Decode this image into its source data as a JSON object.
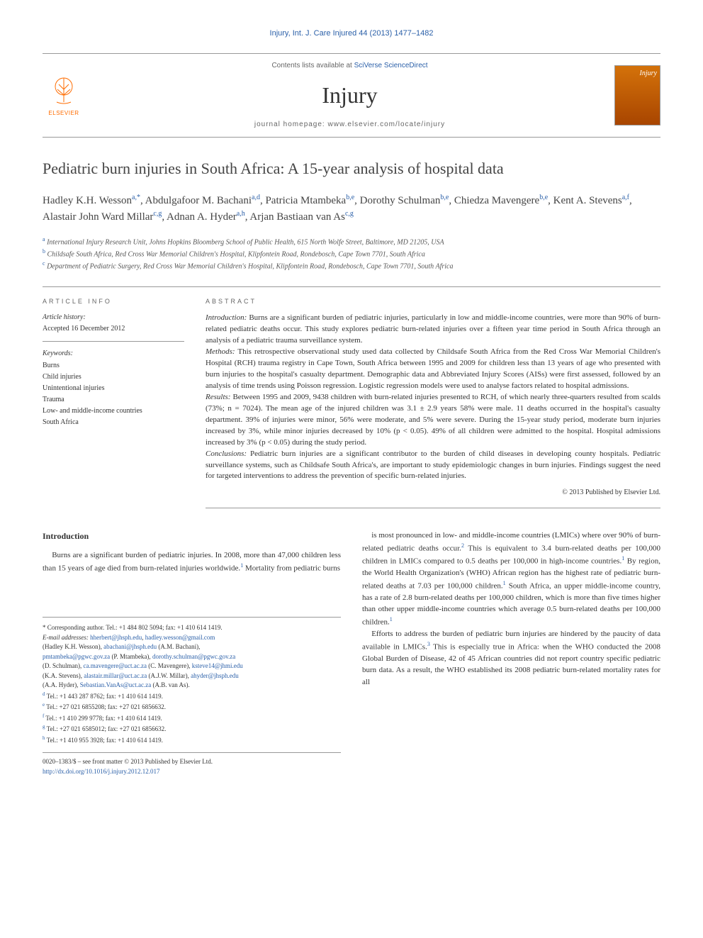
{
  "running_head": "Injury, Int. J. Care Injured 44 (2013) 1477–1482",
  "masthead": {
    "contents_prefix": "Contents lists available at ",
    "contents_link": "SciVerse ScienceDirect",
    "journal": "Injury",
    "homepage_prefix": "journal homepage: ",
    "homepage_url": "www.elsevier.com/locate/injury",
    "elsevier": "ELSEVIER",
    "cover_label": "Injury"
  },
  "title": "Pediatric burn injuries in South Africa: A 15-year analysis of hospital data",
  "authors_html": "Hadley K.H. Wesson|a,*|, Abdulgafoor M. Bachani|a,d|, Patricia Mtambeka|b,e|, Dorothy Schulman|b,e|, Chiedza Mavengere|b,e|, Kent A. Stevens|a,f|, Alastair John Ward Millar|c,g|, Adnan A. Hyder|a,h|, Arjan Bastiaan van As|c,g|",
  "affiliations": [
    {
      "key": "a",
      "text": "International Injury Research Unit, Johns Hopkins Bloomberg School of Public Health, 615 North Wolfe Street, Baltimore, MD 21205, USA"
    },
    {
      "key": "b",
      "text": "Childsafe South Africa, Red Cross War Memorial Children's Hospital, Klipfontein Road, Rondebosch, Cape Town 7701, South Africa"
    },
    {
      "key": "c",
      "text": "Department of Pediatric Surgery, Red Cross War Memorial Children's Hospital, Klipfontein Road, Rondebosch, Cape Town 7701, South Africa"
    }
  ],
  "article_info": {
    "label": "ARTICLE INFO",
    "history_heading": "Article history:",
    "history_text": "Accepted 16 December 2012",
    "keywords_heading": "Keywords:",
    "keywords": [
      "Burns",
      "Child injuries",
      "Unintentional injuries",
      "Trauma",
      "Low- and middle-income countries",
      "South Africa"
    ]
  },
  "abstract": {
    "label": "ABSTRACT",
    "sections": [
      {
        "heading": "Introduction:",
        "text": " Burns are a significant burden of pediatric injuries, particularly in low and middle-income countries, were more than 90% of burn-related pediatric deaths occur. This study explores pediatric burn-related injuries over a fifteen year time period in South Africa through an analysis of a pediatric trauma surveillance system."
      },
      {
        "heading": "Methods:",
        "text": " This retrospective observational study used data collected by Childsafe South Africa from the Red Cross War Memorial Children's Hospital (RCH) trauma registry in Cape Town, South Africa between 1995 and 2009 for children less than 13 years of age who presented with burn injuries to the hospital's casualty department. Demographic data and Abbreviated Injury Scores (AISs) were first assessed, followed by an analysis of time trends using Poisson regression. Logistic regression models were used to analyse factors related to hospital admissions."
      },
      {
        "heading": "Results:",
        "text": " Between 1995 and 2009, 9438 children with burn-related injuries presented to RCH, of which nearly three-quarters resulted from scalds (73%; n = 7024). The mean age of the injured children was 3.1 ± 2.9 years 58% were male. 11 deaths occurred in the hospital's casualty department. 39% of injuries were minor, 56% were moderate, and 5% were severe. During the 15-year study period, moderate burn injuries increased by 3%, while minor injuries decreased by 10% (p < 0.05). 49% of all children were admitted to the hospital. Hospital admissions increased by 3% (p < 0.05) during the study period."
      },
      {
        "heading": "Conclusions:",
        "text": " Pediatric burn injuries are a significant contributor to the burden of child diseases in developing county hospitals. Pediatric surveillance systems, such as Childsafe South Africa's, are important to study epidemiologic changes in burn injuries. Findings suggest the need for targeted interventions to address the prevention of specific burn-related injuries."
      }
    ],
    "copyright": "© 2013 Published by Elsevier Ltd."
  },
  "body": {
    "intro_heading": "Introduction",
    "col1_p1": "Burns are a significant burden of pediatric injuries. In 2008, more than 47,000 children less than 15 years of age died from burn-related injuries worldwide.|1| Mortality from pediatric burns",
    "col2_p1": "is most pronounced in low- and middle-income countries (LMICs) where over 90% of burn-related pediatric deaths occur.|2| This is equivalent to 3.4 burn-related deaths per 100,000 children in LMICs compared to 0.5 deaths per 100,000 in high-income countries.|1| By region, the World Health Organization's (WHO) African region has the highest rate of pediatric burn-related deaths at 7.03 per 100,000 children.|1| South Africa, an upper middle-income country, has a rate of 2.8 burn-related deaths per 100,000 children, which is more than five times higher than other upper middle-income countries which average 0.5 burn-related deaths per 100,000 children.|1|",
    "col2_p2": "Efforts to address the burden of pediatric burn injuries are hindered by the paucity of data available in LMICs.|3| This is especially true in Africa: when the WHO conducted the 2008 Global Burden of Disease, 42 of 45 African countries did not report country specific pediatric burn data. As a result, the WHO established its 2008 pediatric burn-related mortality rates for all"
  },
  "footnotes": {
    "corresponding": "* Corresponding author. Tel.: +1 484 802 5094; fax: +1 410 614 1419.",
    "emails_label": "E-mail addresses: ",
    "emails": [
      {
        "addr": "hherbert@jhsph.edu",
        "sep": ", "
      },
      {
        "addr": "hadley.wesson@gmail.com",
        "sep": ""
      }
    ],
    "email_people": [
      "(Hadley K.H. Wesson), |abachani@jhsph.edu| (A.M. Bachani),",
      "|pmtambeka@pgwc.gov.za| (P. Mtambeka), |dorothy.schulman@pgwc.gov.za|",
      "(D. Schulman), |ca.mavengere@uct.ac.za| (C. Mavengere), |ksteve14@jhmi.edu|",
      "(K.A. Stevens), |alastair.millar@uct.ac.za| (A.J.W. Millar), |ahyder@jhsph.edu|",
      "(A.A. Hyder), |Sebastian.VanAs@uct.ac.za| (A.B. van As)."
    ],
    "tels": [
      {
        "key": "d",
        "text": "Tel.: +1 443 287 8762; fax: +1 410 614 1419."
      },
      {
        "key": "e",
        "text": "Tel.: +27 021 6855208; fax: +27 021 6856632."
      },
      {
        "key": "f",
        "text": "Tel.: +1 410 299 9778; fax: +1 410 614 1419."
      },
      {
        "key": "g",
        "text": "Tel.: +27 021 6585012; fax: +27 021 6856632."
      },
      {
        "key": "h",
        "text": "Tel.: +1 410 955 3928; fax: +1 410 614 1419."
      }
    ],
    "issn": "0020–1383/$ – see front matter © 2013 Published by Elsevier Ltd.",
    "doi": "http://dx.doi.org/10.1016/j.injury.2012.12.017"
  },
  "colors": {
    "link": "#2a5fa8",
    "elsevier_orange": "#ff6c00",
    "text": "#333333",
    "border": "#999999"
  }
}
